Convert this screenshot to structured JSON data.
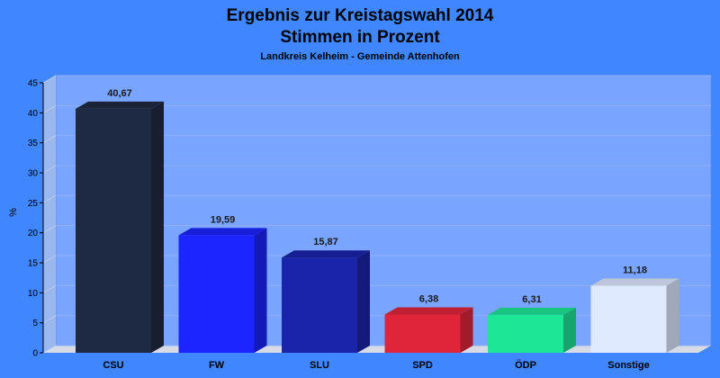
{
  "chart_data": {
    "type": "bar",
    "title": "Ergebnis zur Kreistagswahl 2014",
    "title2": "Stimmen in Prozent",
    "subtitle": "Landkreis Kelheim - Gemeinde Attenhofen",
    "ylabel": "%",
    "xlabel": "",
    "ylim": [
      0,
      45
    ],
    "yticks": [
      0,
      5,
      10,
      15,
      20,
      25,
      30,
      35,
      40,
      45
    ],
    "grid": true,
    "categories": [
      "CSU",
      "FW",
      "SLU",
      "SPD",
      "ÖDP",
      "Sonstige"
    ],
    "values": [
      40.67,
      19.59,
      15.87,
      6.38,
      6.31,
      11.18
    ],
    "value_labels": [
      "40,67",
      "19,59",
      "15,87",
      "6,38",
      "6,31",
      "11,18"
    ],
    "colors": [
      "#1e2a43",
      "#1c24ff",
      "#1a24aa",
      "#e0253a",
      "#1ee697",
      "#dfe9ff"
    ],
    "background_color": "#3f86ff",
    "plot_color": "#79a4ff"
  }
}
